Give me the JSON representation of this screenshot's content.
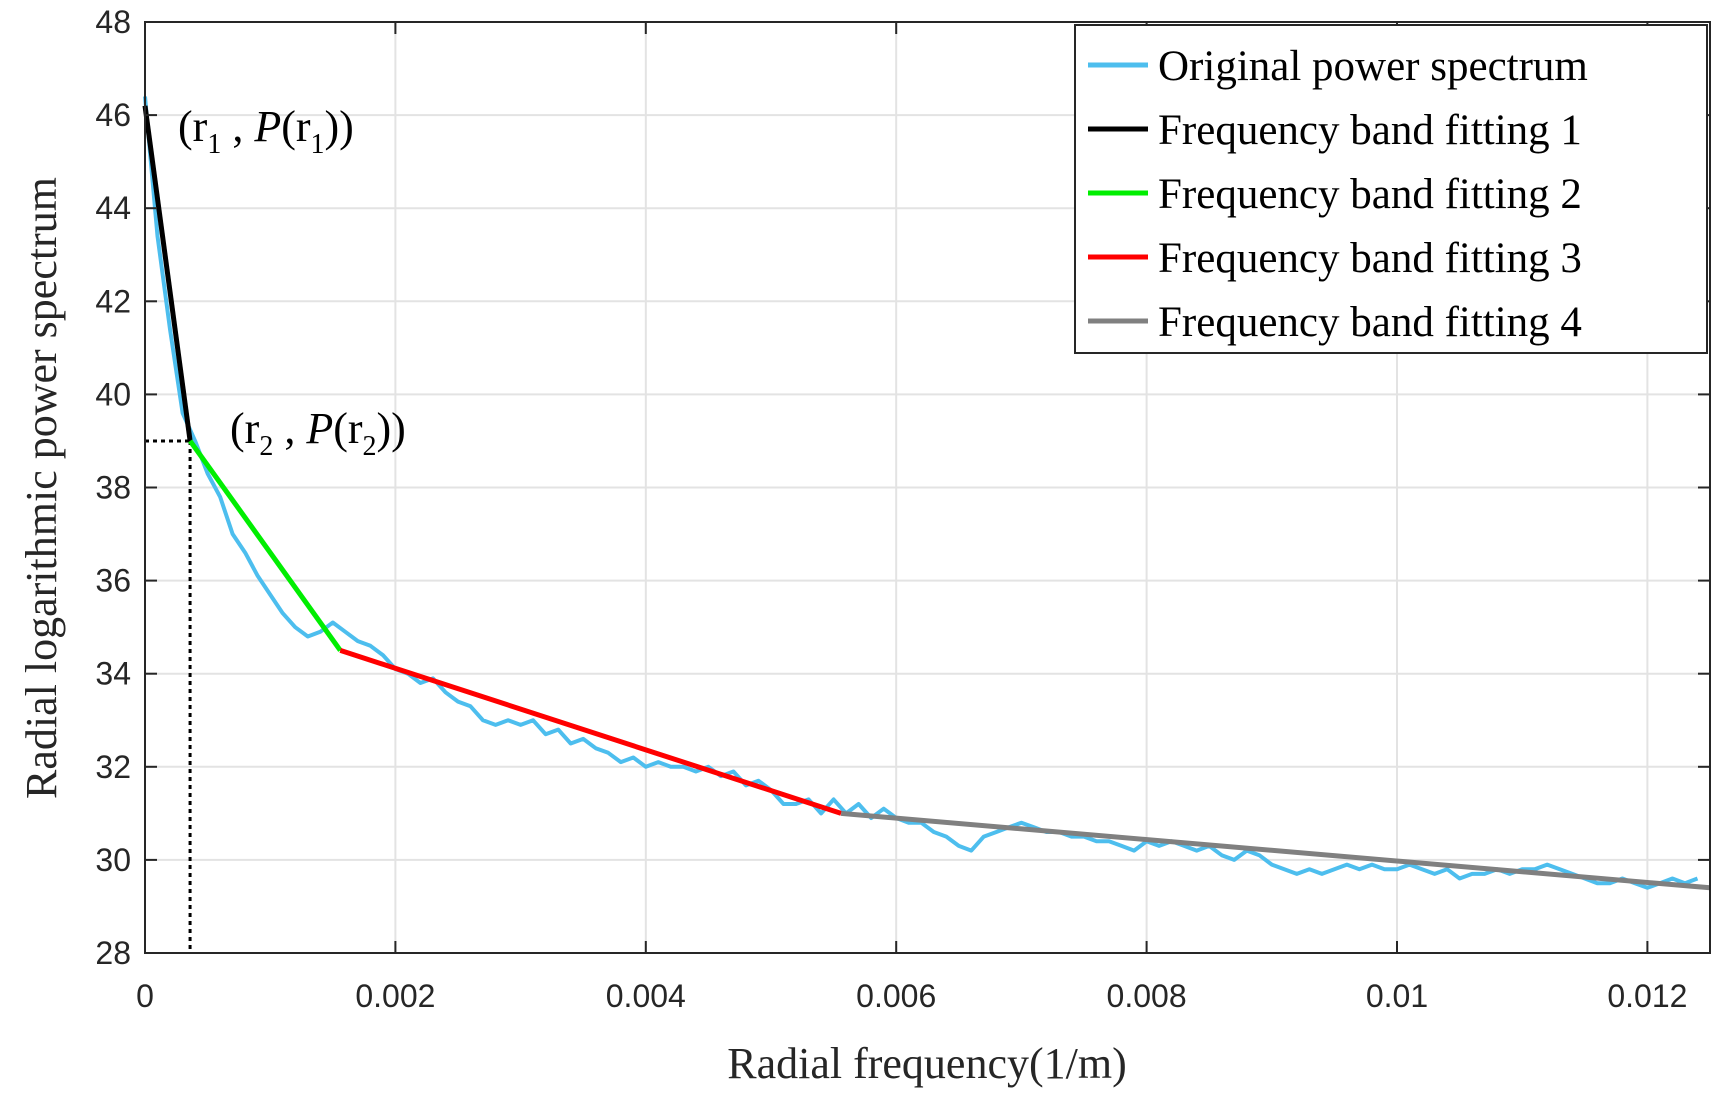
{
  "chart_data": {
    "type": "line",
    "title": "",
    "xlabel": "Radial frequency(1/m)",
    "ylabel": "Radial logarithmic power spectrum",
    "xlim": [
      0,
      0.0125
    ],
    "ylim": [
      28,
      48
    ],
    "x_ticks": [
      0,
      0.002,
      0.004,
      0.006,
      0.008,
      0.01,
      0.012
    ],
    "x_tick_labels": [
      "0",
      "0.002",
      "0.004",
      "0.006",
      "0.008",
      "0.01",
      "0.012"
    ],
    "y_ticks": [
      28,
      30,
      32,
      34,
      36,
      38,
      40,
      42,
      44,
      46,
      48
    ],
    "y_tick_labels": [
      "28",
      "30",
      "32",
      "34",
      "36",
      "38",
      "40",
      "42",
      "44",
      "46",
      "48"
    ],
    "grid": true,
    "legend_position": "top-right",
    "series": [
      {
        "name": "Original power spectrum",
        "color": "#4DBEEE",
        "x": [
          0,
          0.0001,
          0.0002,
          0.0003,
          0.0004,
          0.0005,
          0.0006,
          0.0007,
          0.0008,
          0.0009,
          0.001,
          0.0011,
          0.0012,
          0.0013,
          0.0014,
          0.0015,
          0.0016,
          0.0017,
          0.0018,
          0.0019,
          0.002,
          0.0021,
          0.0022,
          0.0023,
          0.0024,
          0.0025,
          0.0026,
          0.0027,
          0.0028,
          0.0029,
          0.003,
          0.0031,
          0.0032,
          0.0033,
          0.0034,
          0.0035,
          0.0036,
          0.0037,
          0.0038,
          0.0039,
          0.004,
          0.0041,
          0.0042,
          0.0043,
          0.0044,
          0.0045,
          0.0046,
          0.0047,
          0.0048,
          0.0049,
          0.005,
          0.0051,
          0.0052,
          0.0053,
          0.0054,
          0.0055,
          0.0056,
          0.0057,
          0.0058,
          0.0059,
          0.006,
          0.0061,
          0.0062,
          0.0063,
          0.0064,
          0.0065,
          0.0066,
          0.0067,
          0.0068,
          0.0069,
          0.007,
          0.0071,
          0.0072,
          0.0073,
          0.0074,
          0.0075,
          0.0076,
          0.0077,
          0.0078,
          0.0079,
          0.008,
          0.0081,
          0.0082,
          0.0083,
          0.0084,
          0.0085,
          0.0086,
          0.0087,
          0.0088,
          0.0089,
          0.009,
          0.0091,
          0.0092,
          0.0093,
          0.0094,
          0.0095,
          0.0096,
          0.0097,
          0.0098,
          0.0099,
          0.01,
          0.0101,
          0.0102,
          0.0103,
          0.0104,
          0.0105,
          0.0106,
          0.0107,
          0.0108,
          0.0109,
          0.011,
          0.0111,
          0.0112,
          0.0113,
          0.0114,
          0.0115,
          0.0116,
          0.0117,
          0.0118,
          0.0119,
          0.012,
          0.0121,
          0.0122,
          0.0123,
          0.0124
        ],
        "y": [
          46.4,
          43.4,
          41.4,
          39.6,
          39.0,
          38.3,
          37.8,
          37.0,
          36.6,
          36.1,
          35.7,
          35.3,
          35.0,
          34.8,
          34.9,
          35.1,
          34.9,
          34.7,
          34.6,
          34.4,
          34.1,
          34.0,
          33.8,
          33.9,
          33.6,
          33.4,
          33.3,
          33.0,
          32.9,
          33.0,
          32.9,
          33.0,
          32.7,
          32.8,
          32.5,
          32.6,
          32.4,
          32.3,
          32.1,
          32.2,
          32.0,
          32.1,
          32.0,
          32.0,
          31.9,
          32.0,
          31.8,
          31.9,
          31.6,
          31.7,
          31.5,
          31.2,
          31.2,
          31.3,
          31.0,
          31.3,
          31.0,
          31.2,
          30.9,
          31.1,
          30.9,
          30.8,
          30.8,
          30.6,
          30.5,
          30.3,
          30.2,
          30.5,
          30.6,
          30.7,
          30.8,
          30.7,
          30.6,
          30.6,
          30.5,
          30.5,
          30.4,
          30.4,
          30.3,
          30.2,
          30.4,
          30.3,
          30.4,
          30.3,
          30.2,
          30.3,
          30.1,
          30.0,
          30.2,
          30.1,
          29.9,
          29.8,
          29.7,
          29.8,
          29.7,
          29.8,
          29.9,
          29.8,
          29.9,
          29.8,
          29.8,
          29.9,
          29.8,
          29.7,
          29.8,
          29.6,
          29.7,
          29.7,
          29.8,
          29.7,
          29.8,
          29.8,
          29.9,
          29.8,
          29.7,
          29.6,
          29.5,
          29.5,
          29.6,
          29.5,
          29.4,
          29.5,
          29.6,
          29.5,
          29.6
        ]
      },
      {
        "name": "Frequency band fitting 1",
        "color": "#000000",
        "x": [
          0,
          0.00036
        ],
        "y": [
          46.2,
          39.0
        ]
      },
      {
        "name": "Frequency band fitting 2",
        "color": "#00EE00",
        "x": [
          0.00036,
          0.00156
        ],
        "y": [
          39.0,
          34.5
        ]
      },
      {
        "name": "Frequency band fitting 3",
        "color": "#FF0000",
        "x": [
          0.00156,
          0.00556
        ],
        "y": [
          34.5,
          31.0
        ]
      },
      {
        "name": "Frequency band fitting 4",
        "color": "#808080",
        "x": [
          0.00556,
          0.0125
        ],
        "y": [
          31.0,
          29.4
        ]
      }
    ],
    "annotations": [
      {
        "id": "r1",
        "open": "(r",
        "sub1": "1",
        "mid": " , ",
        "italic": "P",
        "open2": "(r",
        "sub2": "1",
        "close": "))",
        "x": 0,
        "y": 46.2
      },
      {
        "id": "r2",
        "open": "(r",
        "sub1": "2",
        "mid": " , ",
        "italic": "P",
        "open2": "(r",
        "sub2": "2",
        "close": "))",
        "x": 0.00036,
        "y": 39.0
      }
    ],
    "reference_point": {
      "x": 0.00036,
      "y": 39.0
    }
  }
}
